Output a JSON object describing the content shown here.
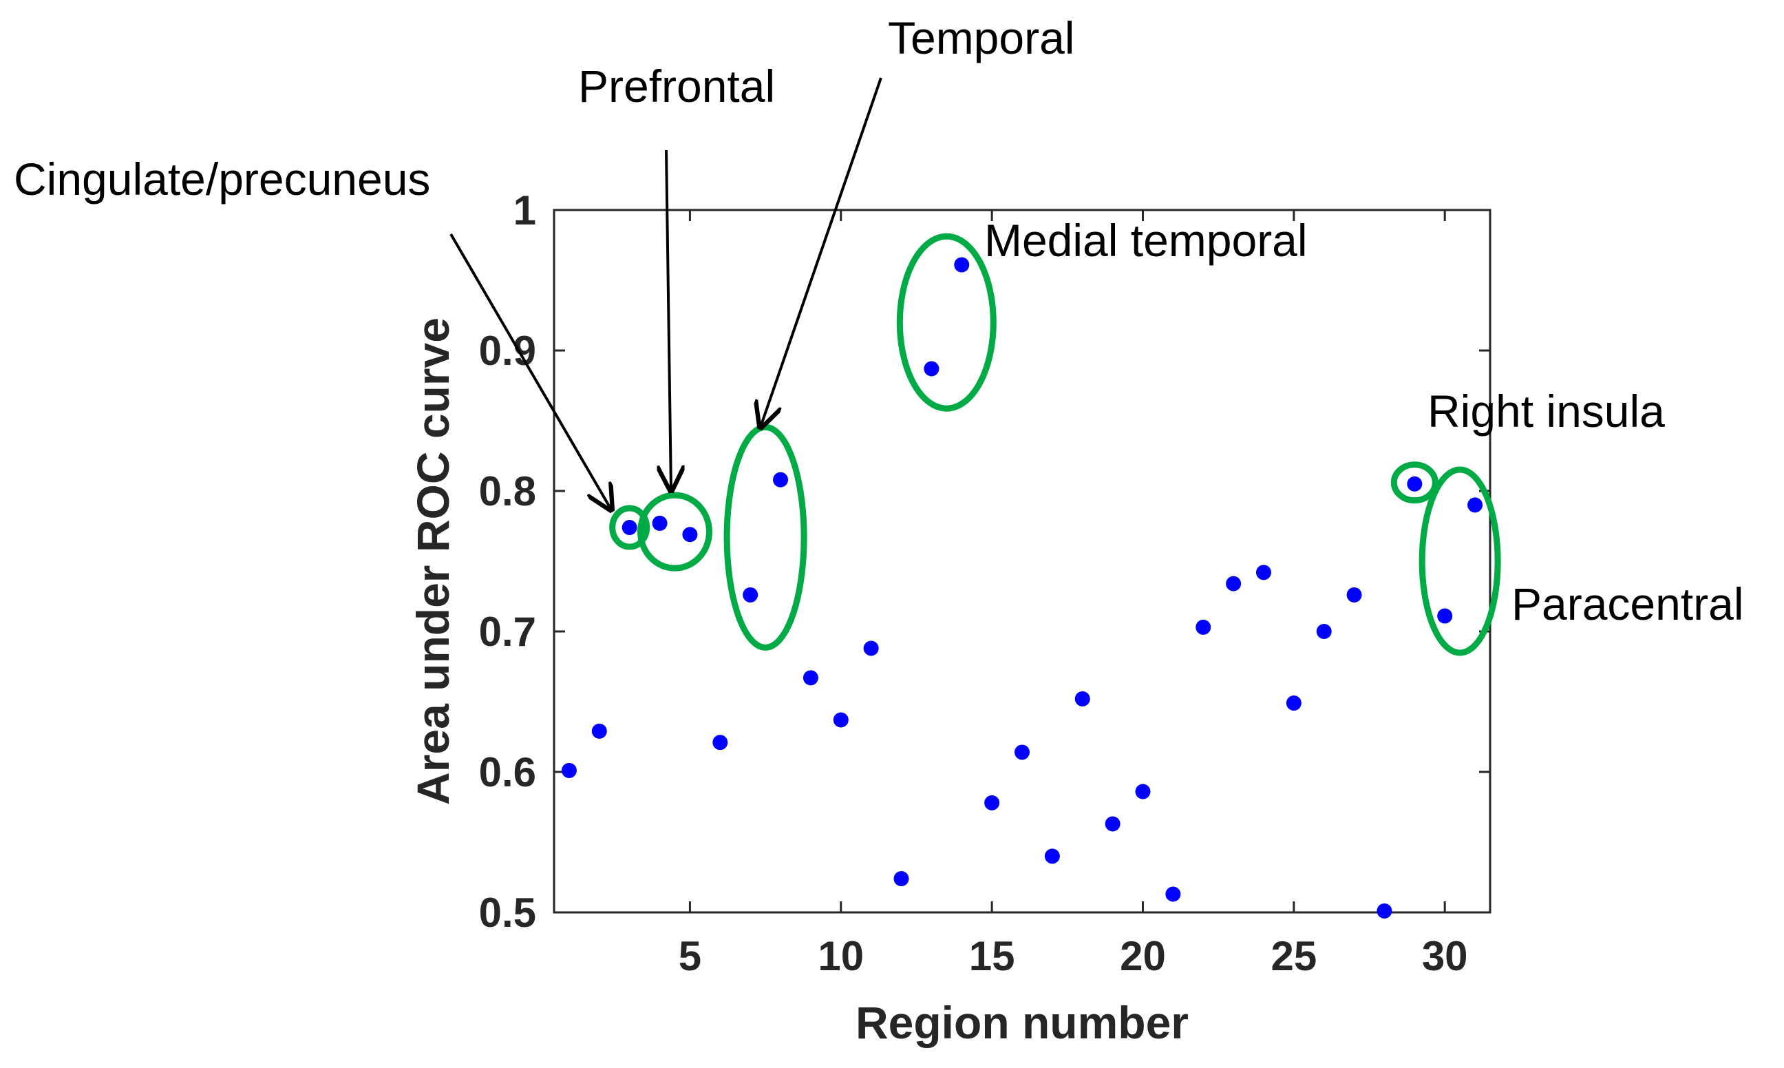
{
  "chart_data": {
    "type": "scatter",
    "xlabel": "Region number",
    "ylabel": "Area under ROC curve",
    "xlim": [
      0.5,
      31.5
    ],
    "ylim": [
      0.5,
      1.0
    ],
    "xticks": [
      5,
      10,
      15,
      20,
      25,
      30
    ],
    "yticks": [
      0.5,
      0.6,
      0.7,
      0.8,
      0.9,
      1.0
    ],
    "ytick_labels": [
      "0.5",
      "0.6",
      "0.7",
      "0.8",
      "0.9",
      "1"
    ],
    "grid": false,
    "box": true,
    "marker_color": "#0000ff",
    "highlight_color": "#00aa44",
    "annotation_color": "#000000",
    "points": [
      {
        "x": 1,
        "y": 0.601
      },
      {
        "x": 2,
        "y": 0.629
      },
      {
        "x": 3,
        "y": 0.774
      },
      {
        "x": 4,
        "y": 0.777
      },
      {
        "x": 5,
        "y": 0.769
      },
      {
        "x": 6,
        "y": 0.621
      },
      {
        "x": 7,
        "y": 0.726
      },
      {
        "x": 8,
        "y": 0.808
      },
      {
        "x": 9,
        "y": 0.667
      },
      {
        "x": 10,
        "y": 0.637
      },
      {
        "x": 11,
        "y": 0.688
      },
      {
        "x": 12,
        "y": 0.524
      },
      {
        "x": 13,
        "y": 0.887
      },
      {
        "x": 14,
        "y": 0.961
      },
      {
        "x": 15,
        "y": 0.578
      },
      {
        "x": 16,
        "y": 0.614
      },
      {
        "x": 17,
        "y": 0.54
      },
      {
        "x": 18,
        "y": 0.652
      },
      {
        "x": 19,
        "y": 0.563
      },
      {
        "x": 20,
        "y": 0.586
      },
      {
        "x": 21,
        "y": 0.513
      },
      {
        "x": 22,
        "y": 0.703
      },
      {
        "x": 23,
        "y": 0.734
      },
      {
        "x": 24,
        "y": 0.742
      },
      {
        "x": 25,
        "y": 0.649
      },
      {
        "x": 26,
        "y": 0.7
      },
      {
        "x": 27,
        "y": 0.726
      },
      {
        "x": 28,
        "y": 0.501
      },
      {
        "x": 29,
        "y": 0.805
      },
      {
        "x": 30,
        "y": 0.711
      },
      {
        "x": 31,
        "y": 0.79
      }
    ],
    "annotations": [
      {
        "id": "cingulate",
        "text": "Cingulate/precuneus",
        "regions": [
          3
        ],
        "center_x": 3.0,
        "center_y": 0.774
      },
      {
        "id": "prefrontal",
        "text": "Prefrontal",
        "regions": [
          4,
          5
        ],
        "center_x": 4.5,
        "center_y": 0.771
      },
      {
        "id": "temporal",
        "text": "Temporal",
        "regions": [
          7,
          8
        ],
        "center_x": 7.5,
        "center_y": 0.767
      },
      {
        "id": "medial-temporal",
        "text": "Medial temporal",
        "regions": [
          13,
          14
        ],
        "center_x": 13.5,
        "center_y": 0.92
      },
      {
        "id": "right-insula",
        "text": "Right insula",
        "regions": [
          29
        ],
        "center_x": 29.0,
        "center_y": 0.806
      },
      {
        "id": "paracentral",
        "text": "Paracentral",
        "regions": [
          30,
          31
        ],
        "center_x": 30.5,
        "center_y": 0.75
      }
    ]
  }
}
